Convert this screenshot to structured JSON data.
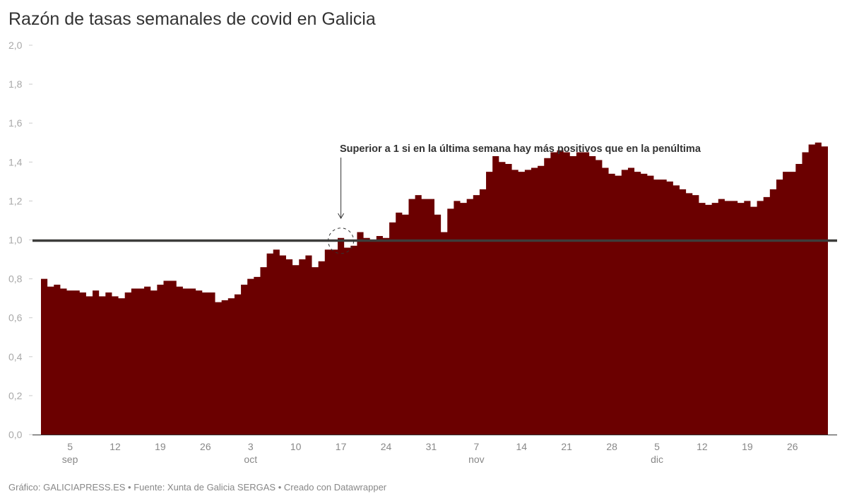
{
  "title": "Razón de tasas semanales de covid en Galicia",
  "footer": "Gráfico: GALICIAPRESS.ES • Fuente: Xunta de Galicia SERGAS • Creado con Datawrapper",
  "annotation": "Superior a 1 si en la última semana hay más positivos que en la penúltima",
  "colors": {
    "bar": "#6b0000",
    "reference_line": "#3d3d3b",
    "axis_text": "#a8a8a8"
  },
  "chart_data": {
    "type": "area",
    "title": "Razón de tasas semanales de covid en Galicia",
    "xlabel": "",
    "ylabel": "",
    "ylim": [
      0,
      2.0
    ],
    "y_ticks": [
      "0,0",
      "0,2",
      "0,4",
      "0,6",
      "0,8",
      "1,0",
      "1,2",
      "1,4",
      "1,6",
      "1,8",
      "2,0"
    ],
    "x_ticks": [
      {
        "day": "5",
        "month": "sep"
      },
      {
        "day": "12",
        "month": ""
      },
      {
        "day": "19",
        "month": ""
      },
      {
        "day": "26",
        "month": ""
      },
      {
        "day": "3",
        "month": "oct"
      },
      {
        "day": "10",
        "month": ""
      },
      {
        "day": "17",
        "month": ""
      },
      {
        "day": "24",
        "month": ""
      },
      {
        "day": "31",
        "month": ""
      },
      {
        "day": "7",
        "month": "nov"
      },
      {
        "day": "14",
        "month": ""
      },
      {
        "day": "21",
        "month": ""
      },
      {
        "day": "28",
        "month": ""
      },
      {
        "day": "5",
        "month": "dic"
      },
      {
        "day": "12",
        "month": ""
      },
      {
        "day": "19",
        "month": ""
      },
      {
        "day": "26",
        "month": ""
      }
    ],
    "reference_line": 1.0,
    "grid": false,
    "step": true,
    "x_start": "1 sep",
    "x_end": "31 dic",
    "values": [
      0.8,
      0.76,
      0.77,
      0.75,
      0.74,
      0.74,
      0.73,
      0.71,
      0.74,
      0.71,
      0.73,
      0.71,
      0.7,
      0.73,
      0.75,
      0.75,
      0.76,
      0.74,
      0.77,
      0.79,
      0.79,
      0.76,
      0.75,
      0.75,
      0.74,
      0.73,
      0.73,
      0.68,
      0.69,
      0.7,
      0.72,
      0.77,
      0.8,
      0.81,
      0.86,
      0.93,
      0.95,
      0.92,
      0.9,
      0.87,
      0.9,
      0.92,
      0.86,
      0.89,
      0.95,
      0.95,
      1.01,
      0.96,
      0.97,
      1.04,
      1.01,
      1.0,
      1.02,
      1.01,
      1.09,
      1.14,
      1.13,
      1.21,
      1.23,
      1.21,
      1.21,
      1.13,
      1.04,
      1.16,
      1.2,
      1.19,
      1.21,
      1.23,
      1.26,
      1.35,
      1.43,
      1.4,
      1.39,
      1.36,
      1.35,
      1.36,
      1.37,
      1.38,
      1.42,
      1.45,
      1.46,
      1.45,
      1.43,
      1.45,
      1.45,
      1.43,
      1.41,
      1.37,
      1.34,
      1.33,
      1.36,
      1.37,
      1.35,
      1.34,
      1.33,
      1.31,
      1.31,
      1.3,
      1.28,
      1.26,
      1.24,
      1.23,
      1.19,
      1.18,
      1.19,
      1.21,
      1.2,
      1.2,
      1.19,
      1.2,
      1.17,
      1.2,
      1.22,
      1.26,
      1.31,
      1.35,
      1.35,
      1.39,
      1.45,
      1.49,
      1.5,
      1.48
    ],
    "annotations": [
      {
        "text": "Superior a 1 si en la última semana hay más positivos que en la penúltima",
        "target": "17 oct",
        "value": 1.01
      }
    ]
  }
}
